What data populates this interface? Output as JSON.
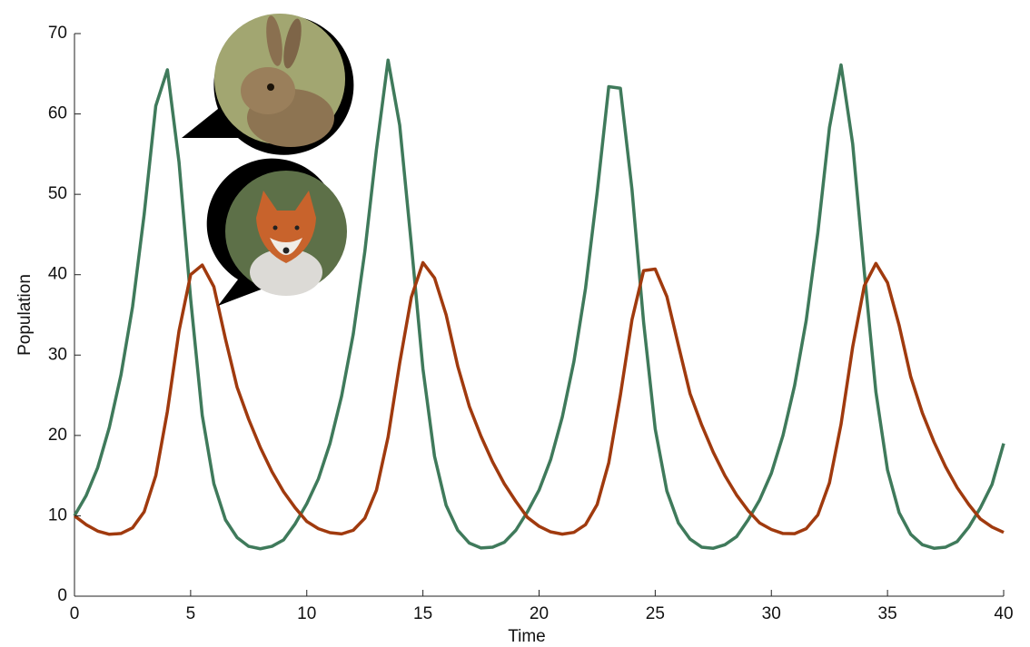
{
  "chart_data": {
    "type": "line",
    "x_label": "Time",
    "y_label": "Population",
    "x": [
      0,
      0.5,
      1,
      1.5,
      2,
      2.5,
      3,
      3.5,
      4,
      4.5,
      5,
      5.5,
      6,
      6.5,
      7,
      7.5,
      8,
      8.5,
      9,
      9.5,
      10,
      10.5,
      11,
      11.5,
      12,
      12.5,
      13,
      13.5,
      14,
      14.5,
      15,
      15.5,
      16,
      16.5,
      17,
      17.5,
      18,
      18.5,
      19,
      19.5,
      20,
      20.5,
      21,
      21.5,
      22,
      22.5,
      23,
      23.5,
      24,
      24.5,
      25,
      25.5,
      26,
      26.5,
      27,
      27.5,
      28,
      28.5,
      29,
      29.5,
      30,
      30.5,
      31,
      31.5,
      32,
      32.5,
      33,
      33.5,
      34,
      34.5,
      35,
      35.5,
      36,
      36.5,
      37,
      37.5,
      38,
      38.5,
      39,
      39.5,
      40
    ],
    "series": [
      {
        "color": "#3f7a5b",
        "values": [
          10,
          12.5,
          16,
          21,
          27.5,
          36,
          47.5,
          61,
          65.5,
          54,
          37,
          22.5,
          14,
          9.5,
          7.3,
          6.2,
          5.9,
          6.2,
          7,
          9,
          11.5,
          14.6,
          19,
          24.9,
          32.6,
          42.9,
          55.6,
          66.7,
          58.6,
          43.8,
          28.3,
          17.4,
          11.3,
          8.2,
          6.6,
          6,
          6.1,
          6.7,
          8.2,
          10.5,
          13.2,
          17,
          22.3,
          29.2,
          38.3,
          50.2,
          63.4,
          63.2,
          50.6,
          34.1,
          20.8,
          13.1,
          9.1,
          7.1,
          6.1,
          5.96,
          6.4,
          7.4,
          9.5,
          12,
          15.3,
          20,
          26.2,
          34.3,
          45.2,
          58.3,
          66.1,
          56.3,
          40.4,
          25.4,
          15.7,
          10.4,
          7.7,
          6.4,
          5.96,
          6.1,
          6.8,
          8.6,
          11,
          13.9,
          19
        ]
      },
      {
        "color": "#a03a0e",
        "values": [
          10,
          8.9,
          8.1,
          7.7,
          7.8,
          8.5,
          10.5,
          15,
          23,
          33,
          40,
          41.2,
          38.5,
          32,
          26,
          22,
          18.5,
          15.5,
          13,
          11,
          9.3,
          8.4,
          7.9,
          7.75,
          8.2,
          9.7,
          13.2,
          19.8,
          29,
          37.2,
          41.5,
          39.6,
          35,
          28.6,
          23.6,
          19.9,
          16.7,
          14,
          11.8,
          9.8,
          8.7,
          8,
          7.72,
          7.94,
          8.9,
          11.4,
          16.6,
          25,
          34.4,
          40.5,
          40.7,
          37.3,
          31.2,
          25.2,
          21.3,
          17.9,
          15,
          12.6,
          10.65,
          9.1,
          8.3,
          7.8,
          7.78,
          8.4,
          10.1,
          14.1,
          21.4,
          31,
          38.6,
          41.4,
          39,
          33.7,
          27.3,
          22.8,
          19.2,
          16.1,
          13.5,
          11.4,
          9.6,
          8.6,
          7.94
        ]
      }
    ],
    "xlim": [
      0,
      40
    ],
    "xticks": [
      0,
      5,
      10,
      15,
      20,
      25,
      30,
      35,
      40
    ],
    "ylim": [
      0,
      70
    ],
    "yticks": [
      0,
      10,
      20,
      30,
      40,
      50,
      60,
      70
    ],
    "grid": false
  }
}
